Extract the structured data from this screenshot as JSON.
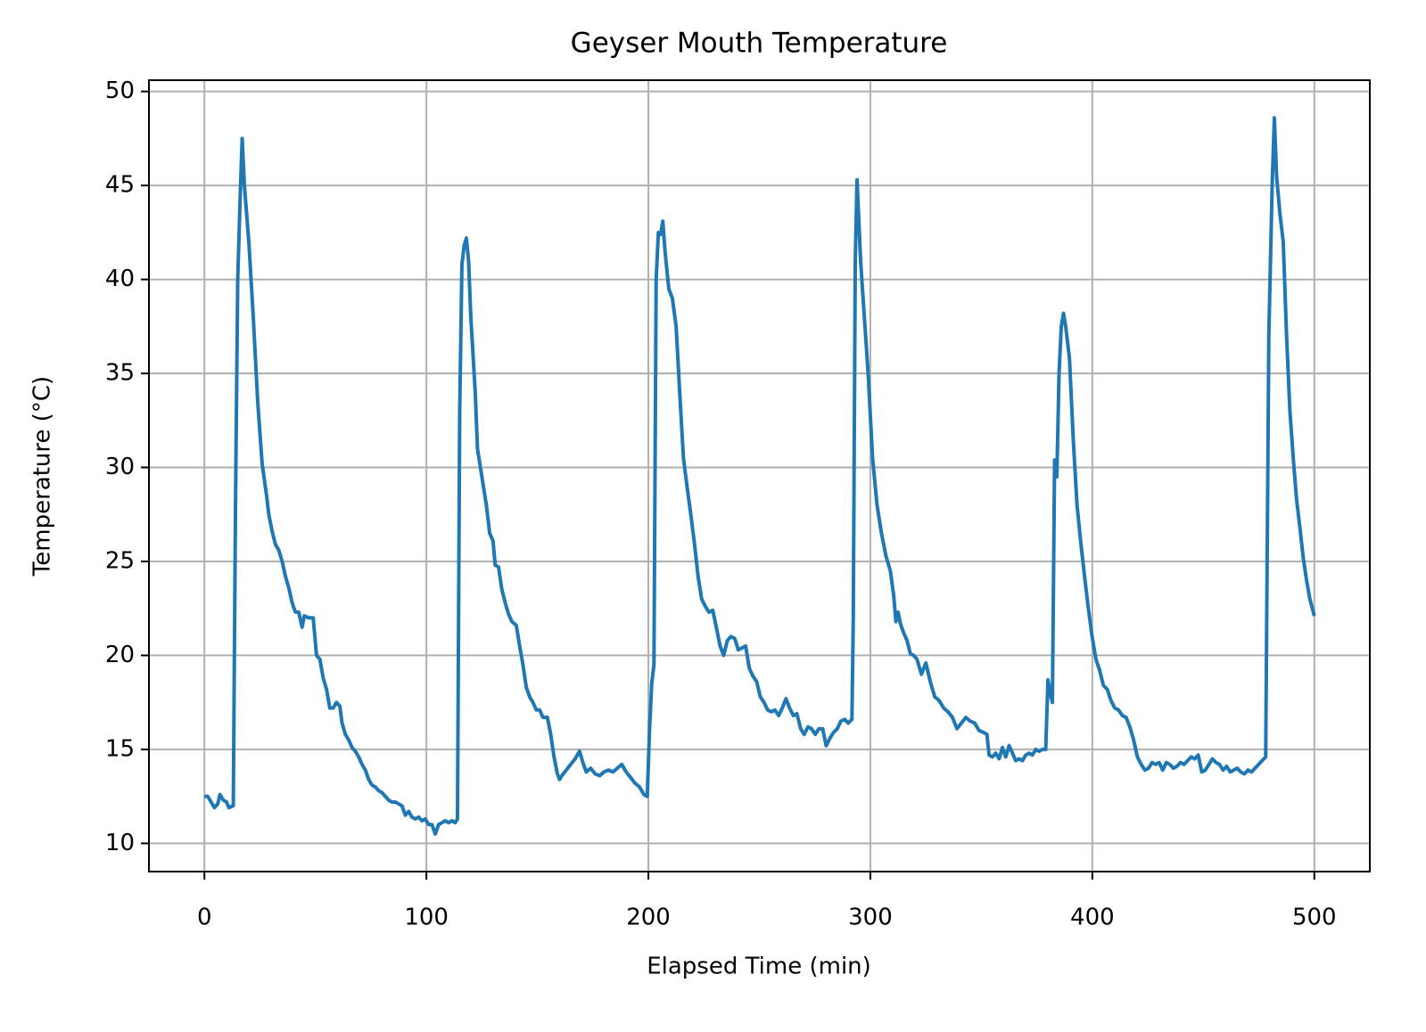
{
  "chart_data": {
    "type": "line",
    "title": "Geyser Mouth Temperature",
    "xlabel": "Elapsed Time (min)",
    "ylabel": "Temperature (°C)",
    "x": [
      0,
      1.5,
      3,
      4.5,
      6,
      7,
      8.5,
      10,
      11,
      13,
      14,
      15,
      16,
      17,
      18,
      20,
      22,
      24,
      26,
      28,
      29,
      30.5,
      32,
      33.5,
      35,
      36.5,
      38,
      39.5,
      41,
      42.5,
      44,
      45,
      47,
      49,
      50.5,
      52,
      53.5,
      55,
      56.5,
      58,
      59.5,
      61,
      62,
      63.5,
      65,
      66.5,
      68,
      69.5,
      71,
      72.5,
      74,
      75.5,
      77,
      78.5,
      80,
      81.5,
      83,
      84.5,
      86,
      87.5,
      89,
      90.5,
      92,
      93.5,
      95,
      96.5,
      98,
      99.5,
      101,
      102.5,
      104,
      105.5,
      107,
      108.5,
      110,
      111.5,
      113,
      114,
      115,
      116,
      117,
      118,
      119,
      120,
      122,
      123,
      125,
      127,
      128.5,
      130,
      131,
      132.5,
      134,
      135.5,
      137,
      138.5,
      140.5,
      142,
      143.5,
      145,
      146.5,
      148,
      149.5,
      151,
      152.5,
      154.5,
      156,
      157.5,
      159,
      160,
      161,
      163,
      165,
      167,
      169,
      170.5,
      172,
      174,
      176,
      178,
      180,
      182,
      184,
      186,
      188,
      190,
      192,
      194,
      196,
      198,
      199.5,
      200.5,
      201.5,
      202.5,
      203.5,
      204.5,
      205.5,
      206.5,
      207.5,
      209.2,
      210.8,
      212.5,
      214.1,
      215.8,
      217.4,
      219.1,
      220.7,
      222.4,
      224.0,
      225.7,
      227.3,
      229.0,
      230.6,
      232.3,
      233.9,
      235.6,
      237.2,
      238.9,
      240.5,
      242.2,
      243.8,
      245.5,
      247.1,
      248.8,
      250.4,
      252.1,
      253.7,
      255.4,
      257.0,
      258.7,
      260.3,
      262.0,
      263.6,
      265.3,
      266.9,
      268.6,
      270.2,
      271.9,
      273.5,
      275.2,
      276.8,
      278.5,
      280.1,
      281.8,
      283.4,
      285.1,
      286.7,
      288.4,
      290.0,
      291.7,
      292.3,
      293.2,
      294,
      295.6,
      297,
      299,
      301,
      303,
      305,
      307,
      309,
      310.5,
      311.5,
      312.5,
      313.5,
      315,
      316.5,
      318,
      319.5,
      321,
      323,
      325,
      327,
      329,
      331,
      333,
      335,
      337,
      339,
      341,
      343,
      345,
      347,
      349,
      351,
      352.5,
      353.5,
      355,
      356.5,
      358,
      359.5,
      361,
      362.5,
      364,
      365.5,
      367,
      368.5,
      370,
      371.5,
      373,
      374.5,
      376,
      377.5,
      379,
      380,
      381,
      382,
      383,
      384,
      385,
      386,
      387,
      388,
      389.7,
      391.4,
      393.1,
      394.8,
      396.5,
      398.2,
      399.9,
      401.6,
      403.3,
      405.0,
      406.7,
      408.4,
      410.1,
      411.8,
      413.5,
      415.2,
      416.9,
      418.6,
      420.3,
      422.0,
      423.7,
      425.3,
      426.9,
      428.5,
      430.1,
      431.7,
      433.3,
      434.9,
      436.5,
      438.1,
      439.7,
      441.3,
      442.9,
      444.5,
      446.1,
      447.7,
      449.3,
      450.9,
      452.5,
      454.1,
      455.7,
      457.3,
      458.9,
      460.5,
      462.1,
      463.7,
      465.3,
      466.9,
      468.5,
      470.1,
      471.7,
      473.3,
      474.9,
      476.5,
      478.1,
      479.5,
      481,
      482,
      483,
      484.5,
      486,
      487.5,
      489,
      490.5,
      492,
      493.5,
      495,
      496.5,
      498,
      500
    ],
    "values": [
      12.5,
      12.5,
      12.2,
      11.9,
      12.1,
      12.6,
      12.3,
      12.2,
      11.9,
      12.0,
      28,
      40,
      44,
      47.5,
      45,
      42,
      38,
      33.5,
      30.2,
      28.5,
      27.5,
      26.6,
      25.9,
      25.6,
      25.0,
      24.2,
      23.6,
      22.8,
      22.3,
      22.3,
      21.5,
      22.1,
      22.0,
      22.0,
      20.0,
      19.8,
      18.8,
      18.2,
      17.2,
      17.2,
      17.5,
      17.3,
      16.4,
      15.8,
      15.5,
      15.1,
      14.9,
      14.6,
      14.2,
      13.9,
      13.4,
      13.1,
      13.0,
      12.8,
      12.7,
      12.5,
      12.3,
      12.2,
      12.2,
      12.1,
      12.0,
      11.5,
      11.7,
      11.4,
      11.3,
      11.4,
      11.2,
      11.3,
      11.0,
      11.0,
      10.5,
      11.0,
      11.1,
      11.2,
      11.1,
      11.2,
      11.1,
      11.3,
      33,
      40.8,
      41.8,
      42.2,
      41,
      38,
      34,
      31,
      29.5,
      28,
      26.5,
      26.1,
      24.8,
      24.7,
      23.5,
      22.8,
      22.2,
      21.8,
      21.6,
      20.5,
      19.5,
      18.3,
      17.8,
      17.5,
      17.1,
      17.1,
      16.7,
      16.7,
      15.8,
      14.6,
      13.7,
      13.4,
      13.6,
      13.9,
      14.2,
      14.5,
      14.9,
      14.3,
      13.8,
      14.0,
      13.7,
      13.6,
      13.8,
      13.9,
      13.8,
      14.0,
      14.2,
      13.8,
      13.5,
      13.2,
      13.0,
      12.6,
      12.5,
      16,
      18.5,
      19.5,
      40,
      42.5,
      42.4,
      43.1,
      41.5,
      39.5,
      39,
      37.5,
      34,
      30.5,
      29,
      27.5,
      26,
      24.2,
      23,
      22.6,
      22.3,
      22.4,
      21.5,
      20.5,
      20,
      20.8,
      21,
      20.9,
      20.3,
      20.4,
      20.5,
      19.3,
      18.9,
      18.6,
      17.8,
      17.5,
      17.1,
      17,
      17.1,
      16.8,
      17.2,
      17.7,
      17.2,
      16.8,
      16.9,
      16.1,
      15.8,
      16.2,
      16.1,
      15.8,
      16.1,
      16.1,
      15.2,
      15.6,
      15.9,
      16.1,
      16.5,
      16.6,
      16.4,
      16.6,
      22,
      41,
      45.3,
      41,
      38.5,
      35,
      30.5,
      28,
      26.5,
      25.3,
      24.5,
      23.2,
      21.8,
      22.3,
      21.7,
      21.2,
      20.8,
      20.1,
      20.0,
      19.8,
      19.0,
      19.6,
      18.6,
      17.8,
      17.6,
      17.2,
      17.0,
      16.7,
      16.1,
      16.4,
      16.7,
      16.5,
      16.4,
      16.0,
      15.9,
      15.8,
      14.7,
      14.6,
      14.8,
      14.5,
      15.1,
      14.6,
      15.2,
      14.8,
      14.4,
      14.5,
      14.4,
      14.7,
      14.8,
      14.7,
      15.0,
      14.9,
      15.0,
      15.0,
      18.7,
      18.0,
      17.5,
      30.4,
      29.5,
      35,
      37.5,
      38.2,
      37.5,
      35.8,
      31.5,
      28,
      26,
      24.2,
      22.5,
      21,
      19.8,
      19.2,
      18.4,
      18.2,
      17.6,
      17.2,
      17.1,
      16.8,
      16.7,
      16.2,
      15.5,
      14.6,
      14.2,
      13.9,
      14.0,
      14.3,
      14.2,
      14.3,
      13.9,
      14.3,
      14.2,
      14.0,
      14.1,
      14.3,
      14.2,
      14.4,
      14.6,
      14.5,
      14.7,
      13.8,
      13.9,
      14.2,
      14.5,
      14.3,
      14.2,
      13.9,
      14.1,
      13.8,
      13.9,
      14.0,
      13.8,
      13.7,
      13.9,
      13.8,
      14.0,
      14.2,
      14.4,
      14.6,
      37,
      45,
      48.6,
      45.5,
      43.5,
      42,
      37,
      33,
      30.5,
      28.3,
      26.8,
      25.2,
      24,
      23,
      22.1
    ],
    "color": "#1f77b4",
    "xlim": [
      -25,
      525
    ],
    "xticks": [
      0,
      100,
      200,
      300,
      400,
      500
    ],
    "ylim": [
      8.5,
      50.6
    ],
    "yticks": [
      10,
      15,
      20,
      25,
      30,
      35,
      40,
      45,
      50
    ],
    "grid": true
  }
}
